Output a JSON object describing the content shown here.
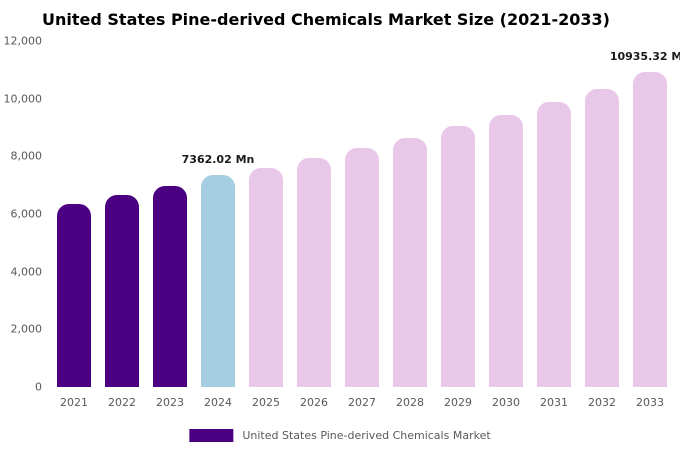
{
  "title": "United States Pine-derived Chemicals Market Size (2021-2033)",
  "legend": {
    "label": "United States Pine-derived Chemicals Market",
    "swatch_color": "#4B0082"
  },
  "colors": {
    "historical_bar": "#4B0082",
    "current_year_bar": "#A6CEE3",
    "forecast_bar": "#E8C7E8"
  },
  "chart_data": {
    "type": "bar",
    "title": "United States Pine-derived Chemicals Market Size (2021-2033)",
    "xlabel": "",
    "ylabel": "",
    "ylim": [
      0,
      12000
    ],
    "grid": false,
    "legend_position": "bottom",
    "categories": [
      "2021",
      "2022",
      "2023",
      "2024",
      "2025",
      "2026",
      "2027",
      "2028",
      "2029",
      "2030",
      "2031",
      "2032",
      "2033"
    ],
    "values": [
      6350,
      6660,
      6980,
      7362.02,
      7600,
      7950,
      8290,
      8650,
      9050,
      9450,
      9900,
      10350,
      10935.32
    ],
    "bar_colors": [
      "#4B0082",
      "#4B0082",
      "#4B0082",
      "#A6CEE3",
      "#E8C7E8",
      "#E8C7E8",
      "#E8C7E8",
      "#E8C7E8",
      "#E8C7E8",
      "#E8C7E8",
      "#E8C7E8",
      "#E8C7E8",
      "#E8C7E8"
    ],
    "annotations": [
      {
        "index": 3,
        "text": "7362.02 Mn"
      },
      {
        "index": 12,
        "text": "10935.32 Mn"
      }
    ],
    "yticks": [
      {
        "value": 0,
        "label": "0"
      },
      {
        "value": 2000,
        "label": "2,000"
      },
      {
        "value": 4000,
        "label": "4,000"
      },
      {
        "value": 6000,
        "label": "6,000"
      },
      {
        "value": 8000,
        "label": "8,000"
      },
      {
        "value": 10000,
        "label": "10,000"
      },
      {
        "value": 12000,
        "label": "12,000"
      }
    ]
  }
}
